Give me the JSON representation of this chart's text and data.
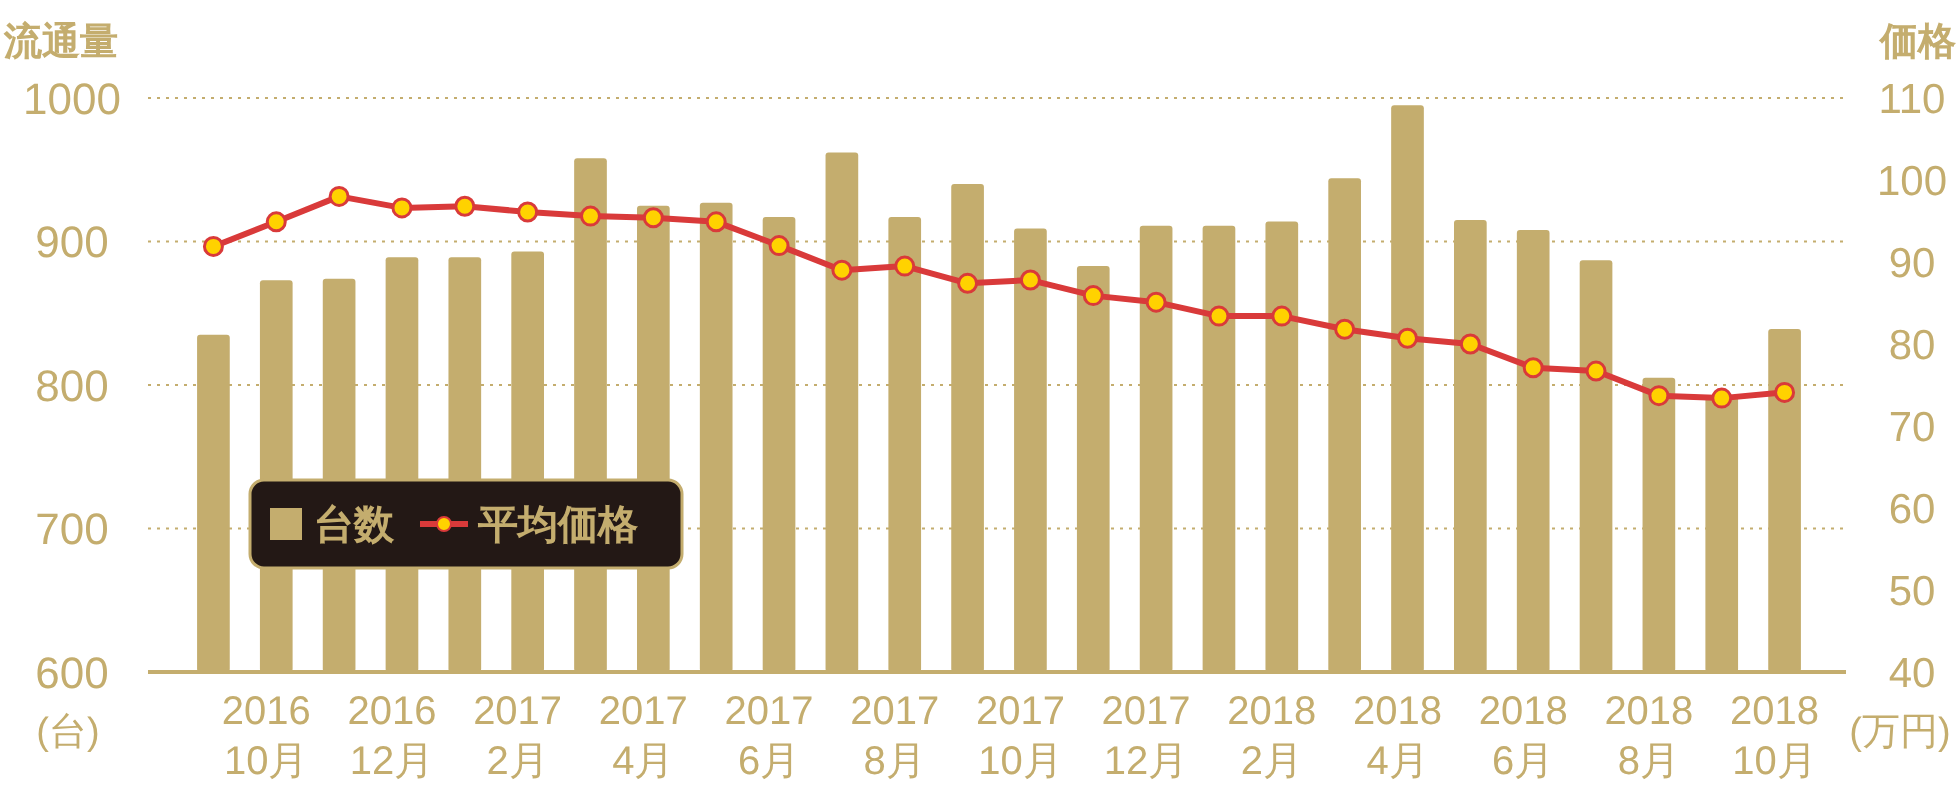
{
  "chart_data": {
    "type": "bar",
    "ylabel": "流通量",
    "y2label": "価格",
    "annotations": [
      "(台)",
      "(万円)"
    ],
    "categories": [
      null,
      "2016\n10月",
      null,
      "2016\n12月",
      null,
      "2017\n2月",
      null,
      "2017\n4月",
      null,
      "2017\n6月",
      null,
      "2017\n8月",
      null,
      "2017\n10月",
      null,
      "2017\n12月",
      null,
      "2018\n2月",
      null,
      "2018\n4月",
      null,
      "2018\n6月",
      null,
      "2018\n8月",
      null,
      "2018\n10月"
    ],
    "series": [
      {
        "name": "台数",
        "color": "#c4ad6e",
        "values": [
          835,
          873,
          874,
          889,
          889,
          893,
          958,
          925,
          927,
          917,
          962,
          917,
          940,
          909,
          883,
          911,
          911,
          914,
          944,
          995,
          915,
          908,
          887,
          805,
          793,
          839
        ]
      },
      {
        "name": "平均価格",
        "type": "line",
        "axis": "y2",
        "color": "#d93a3a",
        "marker": "circle",
        "values": [
          91.9,
          94.9,
          98.0,
          96.6,
          96.8,
          96.1,
          95.6,
          95.4,
          94.9,
          92.0,
          89.0,
          89.5,
          87.4,
          87.8,
          85.9,
          85.1,
          83.4,
          83.4,
          81.8,
          80.7,
          80.0,
          77.1,
          76.7,
          73.7,
          73.4,
          74.1
        ]
      }
    ],
    "ylim": [
      600,
      1000
    ],
    "yticks": [
      600,
      700,
      800,
      900,
      1000
    ],
    "y2lim": [
      40,
      110
    ],
    "y2ticks": [
      40,
      50,
      60,
      70,
      80,
      90,
      100,
      110
    ],
    "grid": "y",
    "legend": "left"
  }
}
